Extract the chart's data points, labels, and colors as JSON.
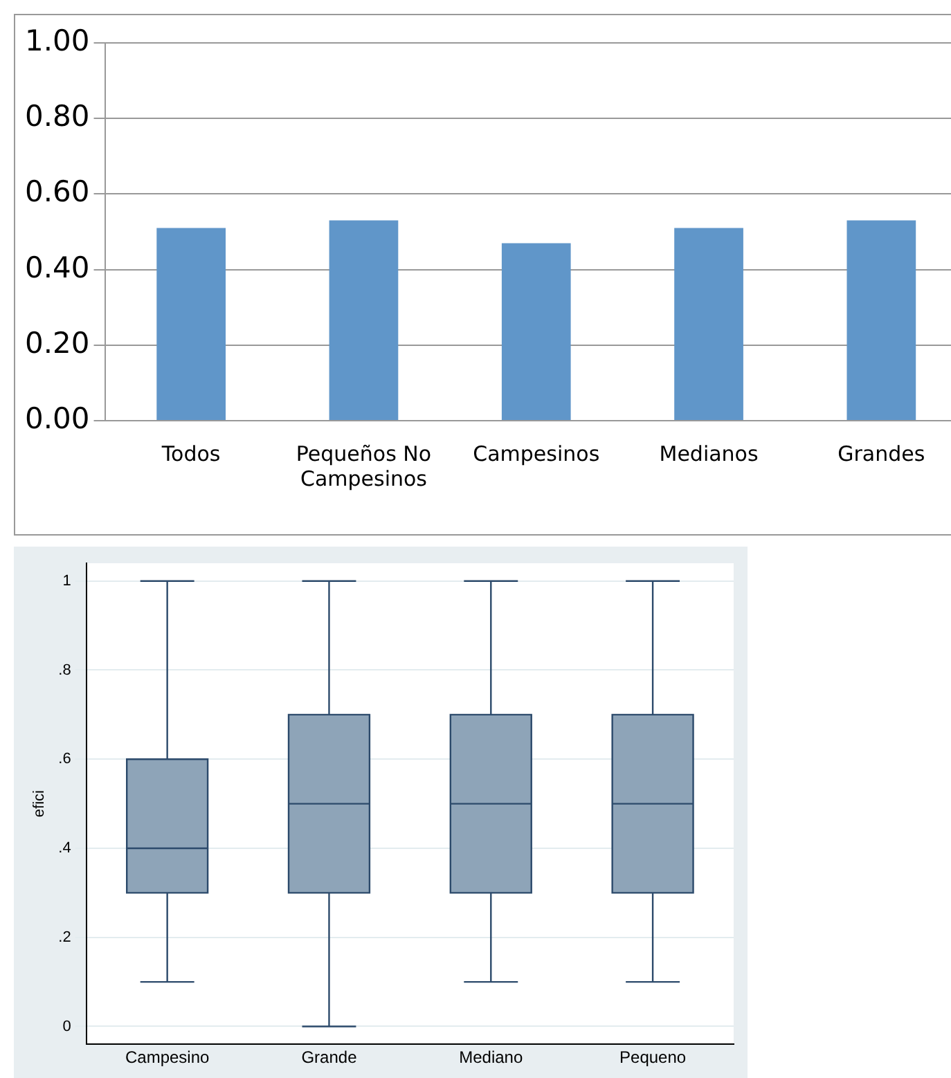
{
  "chart_data": [
    {
      "type": "bar",
      "categories": [
        "Todos",
        "Pequeños No Campesinos",
        "Campesinos",
        "Medianos",
        "Grandes"
      ],
      "values": [
        0.51,
        0.53,
        0.47,
        0.51,
        0.53
      ],
      "color": "#6096c9",
      "ylim": [
        0,
        1
      ],
      "yticks": [
        {
          "value": 0,
          "label": "0.00"
        },
        {
          "value": 0.2,
          "label": "0.20"
        },
        {
          "value": 0.4,
          "label": "0.40"
        },
        {
          "value": 0.6,
          "label": "0.60"
        },
        {
          "value": 0.8,
          "label": "0.80"
        },
        {
          "value": 1,
          "label": "1.00"
        }
      ],
      "grid": "y",
      "legend": false
    },
    {
      "type": "box",
      "ylabel": "efici",
      "categories": [
        "Campesino",
        "Grande",
        "Mediano",
        "Pequeno"
      ],
      "color": "#8ea4b8",
      "boxes": [
        {
          "low": 0.1,
          "q1": 0.3,
          "median": 0.4,
          "q3": 0.6,
          "high": 1
        },
        {
          "low": 0,
          "q1": 0.3,
          "median": 0.5,
          "q3": 0.7,
          "high": 1
        },
        {
          "low": 0.1,
          "q1": 0.3,
          "median": 0.5,
          "q3": 0.7,
          "high": 1
        },
        {
          "low": 0.1,
          "q1": 0.3,
          "median": 0.5,
          "q3": 0.7,
          "high": 1
        }
      ],
      "ylim": [
        -0.04,
        1.04
      ],
      "yticks": [
        0,
        {
          "value": 0.2,
          "label": ".2"
        },
        {
          "value": 0.4,
          "label": ".4"
        },
        {
          "value": 0.6,
          "label": ".6"
        },
        {
          "value": 0.8,
          "label": ".8"
        },
        1
      ],
      "grid": "y",
      "legend": false
    }
  ]
}
